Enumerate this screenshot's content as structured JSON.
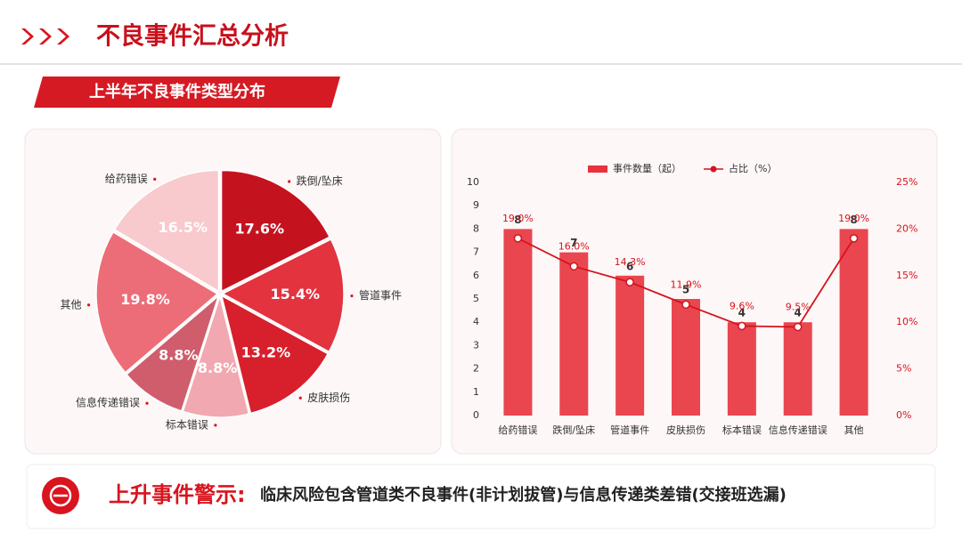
{
  "header": {
    "title": "不良事件汇总分析",
    "subtitle": "上半年不良事件类型分布"
  },
  "chart_data": [
    {
      "type": "pie",
      "categories": [
        "跌倒/坠床",
        "管道事件",
        "皮肤损伤",
        "标本错误",
        "信息传递错误",
        "其他",
        "给药错误"
      ],
      "values": [
        17.6,
        15.4,
        13.2,
        8.8,
        8.8,
        19.8,
        16.5
      ],
      "value_labels": [
        "17.6%",
        "15.4%",
        "13.2%",
        "8.8%",
        "8.8%",
        "19.8%",
        "16.5%"
      ],
      "colors": [
        "#c5121f",
        "#e2333f",
        "#d7202c",
        "#f2a8b0",
        "#cf5d6c",
        "#ec6d78",
        "#f8c9cd"
      ]
    },
    {
      "type": "combo",
      "categories": [
        "给药错误",
        "跌倒/坠床",
        "管道事件",
        "皮肤损伤",
        "标本错误",
        "信息传递错误",
        "其他"
      ],
      "series": [
        {
          "name": "事件数量（起）",
          "type": "bar",
          "color": "#e8323c",
          "values": [
            8,
            7,
            6,
            5,
            4,
            4,
            8
          ]
        },
        {
          "name": "占比（%）",
          "type": "line",
          "axis": "y2",
          "color": "#d4141e",
          "values": [
            19.0,
            16.0,
            14.3,
            11.9,
            9.6,
            9.5,
            19.0
          ],
          "value_labels": [
            "19.0%",
            "16.0%",
            "14.3%",
            "11.9%",
            "9.6%",
            "9.5%",
            "19.0%"
          ]
        }
      ],
      "ylim": [
        0,
        10
      ],
      "yticks": [
        0,
        1,
        2,
        3,
        4,
        5,
        6,
        7,
        8,
        9,
        10
      ],
      "y2lim": [
        0,
        25
      ],
      "y2ticks": [
        {
          "value": 0,
          "label": "0%"
        },
        {
          "value": 5,
          "label": "5%"
        },
        {
          "value": 10,
          "label": "10%"
        },
        {
          "value": 15,
          "label": "15%"
        },
        {
          "value": 20,
          "label": "20%"
        },
        {
          "value": 25,
          "label": "25%"
        }
      ]
    }
  ],
  "footer": {
    "label": "上升事件警示:",
    "text": "临床风险包含管道类不良事件(非计划拔管)与信息传递类差错(交接班选漏)"
  }
}
